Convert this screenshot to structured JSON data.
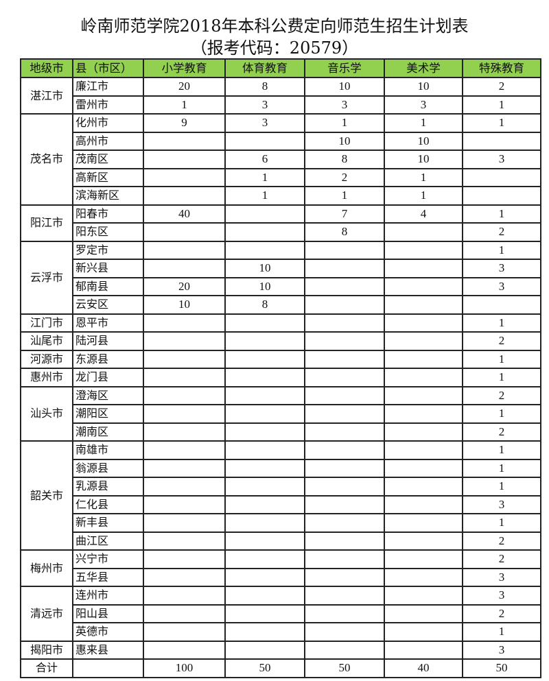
{
  "title": "岭南师范学院2018年本科公费定向师范生招生计划表",
  "subtitle": "（报考代码：20579）",
  "header_color": "#92d050",
  "columns": [
    "地级市",
    "县（市区）",
    "小学教育",
    "体育教育",
    "音乐学",
    "美术学",
    "特殊教育"
  ],
  "groups": [
    {
      "city": "湛江市",
      "rows": [
        {
          "county": "廉江市",
          "values": [
            "20",
            "8",
            "10",
            "10",
            "2"
          ]
        },
        {
          "county": "雷州市",
          "values": [
            "1",
            "3",
            "3",
            "3",
            "1"
          ]
        }
      ]
    },
    {
      "city": "茂名市",
      "rows": [
        {
          "county": "化州市",
          "values": [
            "9",
            "3",
            "1",
            "1",
            "1"
          ]
        },
        {
          "county": "高州市",
          "values": [
            "",
            "",
            "10",
            "10",
            ""
          ]
        },
        {
          "county": "茂南区",
          "values": [
            "",
            "6",
            "8",
            "10",
            "3"
          ]
        },
        {
          "county": "高新区",
          "values": [
            "",
            "1",
            "2",
            "1",
            ""
          ]
        },
        {
          "county": "滨海新区",
          "values": [
            "",
            "1",
            "1",
            "1",
            ""
          ]
        }
      ]
    },
    {
      "city": "阳江市",
      "rows": [
        {
          "county": "阳春市",
          "values": [
            "40",
            "",
            "7",
            "4",
            "1"
          ]
        },
        {
          "county": "阳东区",
          "values": [
            "",
            "",
            "8",
            "",
            "2"
          ]
        }
      ]
    },
    {
      "city": "云浮市",
      "rows": [
        {
          "county": "罗定市",
          "values": [
            "",
            "",
            "",
            "",
            "1"
          ]
        },
        {
          "county": "新兴县",
          "values": [
            "",
            "10",
            "",
            "",
            "3"
          ]
        },
        {
          "county": "郁南县",
          "values": [
            "20",
            "10",
            "",
            "",
            "3"
          ]
        },
        {
          "county": "云安区",
          "values": [
            "10",
            "8",
            "",
            "",
            ""
          ]
        }
      ]
    },
    {
      "city": "江门市",
      "rows": [
        {
          "county": "恩平市",
          "values": [
            "",
            "",
            "",
            "",
            "1"
          ]
        }
      ]
    },
    {
      "city": "汕尾市",
      "rows": [
        {
          "county": "陆河县",
          "values": [
            "",
            "",
            "",
            "",
            "2"
          ]
        }
      ]
    },
    {
      "city": "河源市",
      "rows": [
        {
          "county": "东源县",
          "values": [
            "",
            "",
            "",
            "",
            "1"
          ]
        }
      ]
    },
    {
      "city": "惠州市",
      "rows": [
        {
          "county": "龙门县",
          "values": [
            "",
            "",
            "",
            "",
            "1"
          ]
        }
      ]
    },
    {
      "city": "汕头市",
      "rows": [
        {
          "county": "澄海区",
          "values": [
            "",
            "",
            "",
            "",
            "2"
          ]
        },
        {
          "county": "潮阳区",
          "values": [
            "",
            "",
            "",
            "",
            "1"
          ]
        },
        {
          "county": "潮南区",
          "values": [
            "",
            "",
            "",
            "",
            "2"
          ]
        }
      ]
    },
    {
      "city": "韶关市",
      "rows": [
        {
          "county": "南雄市",
          "values": [
            "",
            "",
            "",
            "",
            "1"
          ]
        },
        {
          "county": "翁源县",
          "values": [
            "",
            "",
            "",
            "",
            "1"
          ]
        },
        {
          "county": "乳源县",
          "values": [
            "",
            "",
            "",
            "",
            "1"
          ]
        },
        {
          "county": "仁化县",
          "values": [
            "",
            "",
            "",
            "",
            "3"
          ]
        },
        {
          "county": "新丰县",
          "values": [
            "",
            "",
            "",
            "",
            "1"
          ]
        },
        {
          "county": "曲江区",
          "values": [
            "",
            "",
            "",
            "",
            "2"
          ]
        }
      ]
    },
    {
      "city": "梅州市",
      "rows": [
        {
          "county": "兴宁市",
          "values": [
            "",
            "",
            "",
            "",
            "2"
          ]
        },
        {
          "county": "五华县",
          "values": [
            "",
            "",
            "",
            "",
            "3"
          ]
        }
      ]
    },
    {
      "city": "清远市",
      "rows": [
        {
          "county": "连州市",
          "values": [
            "",
            "",
            "",
            "",
            "3"
          ]
        },
        {
          "county": "阳山县",
          "values": [
            "",
            "",
            "",
            "",
            "2"
          ]
        },
        {
          "county": "英德市",
          "values": [
            "",
            "",
            "",
            "",
            "1"
          ]
        }
      ]
    },
    {
      "city": "揭阳市",
      "rows": [
        {
          "county": "惠来县",
          "values": [
            "",
            "",
            "",
            "",
            "3"
          ]
        }
      ]
    }
  ],
  "total": {
    "label": "合计",
    "county": "",
    "values": [
      "100",
      "50",
      "50",
      "40",
      "50"
    ]
  }
}
